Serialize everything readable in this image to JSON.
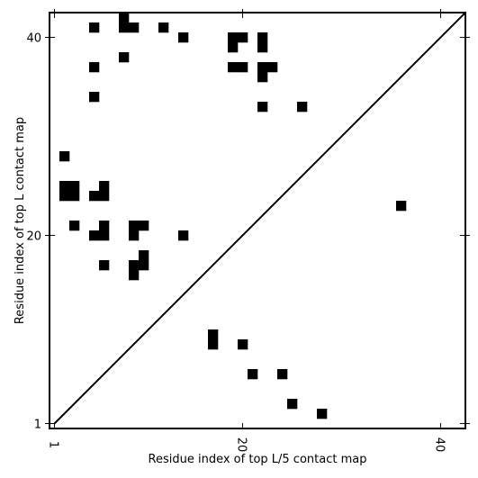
{
  "chart_data": {
    "type": "heatmap",
    "title": "",
    "xlabel": "Residue index of top L/5 contact map",
    "ylabel": "Residue index of top L contact map",
    "xlim": [
      0.5,
      42.5
    ],
    "ylim": [
      0.5,
      42.5
    ],
    "x_ticks": [
      1,
      20,
      40
    ],
    "y_ticks": [
      1,
      20,
      40
    ],
    "x_tick_labels": [
      "1",
      "20",
      "40"
    ],
    "y_tick_labels": [
      "1",
      "20",
      "40"
    ],
    "x_tick_label_rotation": 90,
    "diagonal_line": true,
    "cell_color": "#000000",
    "background_color": "#ffffff",
    "upper_triangle_contacts": [
      [
        5,
        41
      ],
      [
        8,
        42
      ],
      [
        8,
        41
      ],
      [
        9,
        41
      ],
      [
        12,
        41
      ],
      [
        14,
        40
      ],
      [
        19,
        40
      ],
      [
        19,
        39
      ],
      [
        20,
        40
      ],
      [
        22,
        40
      ],
      [
        22,
        39
      ],
      [
        5,
        37
      ],
      [
        8,
        38
      ],
      [
        19,
        37
      ],
      [
        20,
        37
      ],
      [
        22,
        37
      ],
      [
        22,
        36
      ],
      [
        23,
        37
      ],
      [
        5,
        34
      ],
      [
        22,
        33
      ],
      [
        26,
        33
      ],
      [
        2,
        28
      ],
      [
        2,
        25
      ],
      [
        3,
        25
      ],
      [
        6,
        25
      ],
      [
        2,
        24
      ],
      [
        3,
        24
      ],
      [
        5,
        24
      ],
      [
        6,
        24
      ],
      [
        36,
        23
      ],
      [
        3,
        21
      ],
      [
        6,
        21
      ],
      [
        9,
        21
      ],
      [
        10,
        21
      ],
      [
        5,
        20
      ],
      [
        6,
        20
      ],
      [
        9,
        20
      ],
      [
        14,
        20
      ],
      [
        10,
        18
      ],
      [
        9,
        17
      ],
      [
        10,
        17
      ],
      [
        6,
        17
      ],
      [
        9,
        16
      ]
    ],
    "lower_triangle_contacts": [
      [
        17,
        10
      ],
      [
        17,
        9
      ],
      [
        20,
        9
      ],
      [
        21,
        6
      ],
      [
        24,
        6
      ],
      [
        25,
        3
      ],
      [
        28,
        2
      ]
    ]
  }
}
